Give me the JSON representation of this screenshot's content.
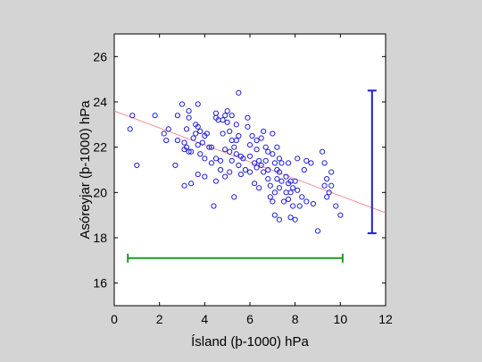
{
  "chart_data": {
    "type": "scatter",
    "xlabel": "Ísland (þ-1000) hPa",
    "ylabel": "Asóreyjar (þ-1000) hPa",
    "xlim": [
      0,
      12
    ],
    "ylim": [
      15,
      27
    ],
    "xticks": [
      0,
      2,
      4,
      6,
      8,
      10,
      12
    ],
    "yticks": [
      16,
      18,
      20,
      22,
      24,
      26
    ],
    "grid": false,
    "colors": {
      "points": "#1f1fd6",
      "trend": "#f09090",
      "x_range_bar": "#1f9a1f",
      "y_range_bar": "#1f1fd6",
      "background": "#d4d4d4",
      "plot_area": "#ffffff"
    },
    "trend_line": {
      "x": [
        0,
        12
      ],
      "y": [
        23.6,
        19.1
      ]
    },
    "x_range_bar": {
      "y": 17.1,
      "x_min": 0.6,
      "x_max": 10.1
    },
    "y_range_bar": {
      "x": 11.4,
      "y_min": 18.2,
      "y_max": 24.5
    },
    "points": [
      [
        0.7,
        22.8
      ],
      [
        0.8,
        23.4
      ],
      [
        1.0,
        21.2
      ],
      [
        1.8,
        23.4
      ],
      [
        2.2,
        22.6
      ],
      [
        2.3,
        22.3
      ],
      [
        2.4,
        22.8
      ],
      [
        2.7,
        21.2
      ],
      [
        2.8,
        23.4
      ],
      [
        2.8,
        22.3
      ],
      [
        3.0,
        23.9
      ],
      [
        3.1,
        22.2
      ],
      [
        3.1,
        21.9
      ],
      [
        3.1,
        20.3
      ],
      [
        3.2,
        22.8
      ],
      [
        3.2,
        22.0
      ],
      [
        3.3,
        23.6
      ],
      [
        3.3,
        23.3
      ],
      [
        3.3,
        21.8
      ],
      [
        3.4,
        21.8
      ],
      [
        3.4,
        20.4
      ],
      [
        3.5,
        22.4
      ],
      [
        3.6,
        23.0
      ],
      [
        3.6,
        22.6
      ],
      [
        3.7,
        23.9
      ],
      [
        3.7,
        22.9
      ],
      [
        3.7,
        22.1
      ],
      [
        3.7,
        20.8
      ],
      [
        3.8,
        22.7
      ],
      [
        3.8,
        21.7
      ],
      [
        3.9,
        22.2
      ],
      [
        4.0,
        22.5
      ],
      [
        4.0,
        21.5
      ],
      [
        4.0,
        20.7
      ],
      [
        4.1,
        22.6
      ],
      [
        4.2,
        22.0
      ],
      [
        4.3,
        22.0
      ],
      [
        4.3,
        21.3
      ],
      [
        4.4,
        19.4
      ],
      [
        4.5,
        23.5
      ],
      [
        4.5,
        23.3
      ],
      [
        4.5,
        21.5
      ],
      [
        4.5,
        20.5
      ],
      [
        4.6,
        23.2
      ],
      [
        4.7,
        21.4
      ],
      [
        4.7,
        21.0
      ],
      [
        4.8,
        23.2
      ],
      [
        4.8,
        22.6
      ],
      [
        4.9,
        23.4
      ],
      [
        4.9,
        21.9
      ],
      [
        4.9,
        20.7
      ],
      [
        5.0,
        23.6
      ],
      [
        5.0,
        23.1
      ],
      [
        5.1,
        22.7
      ],
      [
        5.1,
        21.8
      ],
      [
        5.1,
        20.9
      ],
      [
        5.2,
        23.4
      ],
      [
        5.2,
        22.3
      ],
      [
        5.2,
        21.4
      ],
      [
        5.3,
        22.0
      ],
      [
        5.3,
        19.8
      ],
      [
        5.4,
        23.0
      ],
      [
        5.4,
        22.3
      ],
      [
        5.4,
        21.7
      ],
      [
        5.5,
        24.4
      ],
      [
        5.5,
        22.5
      ],
      [
        5.5,
        21.2
      ],
      [
        5.6,
        21.6
      ],
      [
        5.6,
        20.8
      ],
      [
        5.7,
        21.5
      ],
      [
        5.8,
        21.0
      ],
      [
        5.9,
        23.3
      ],
      [
        5.9,
        22.9
      ],
      [
        6.0,
        22.1
      ],
      [
        6.0,
        21.6
      ],
      [
        6.0,
        20.9
      ],
      [
        6.1,
        22.5
      ],
      [
        6.2,
        21.3
      ],
      [
        6.2,
        20.4
      ],
      [
        6.3,
        22.3
      ],
      [
        6.3,
        21.9
      ],
      [
        6.3,
        21.1
      ],
      [
        6.4,
        21.4
      ],
      [
        6.4,
        20.2
      ],
      [
        6.5,
        22.4
      ],
      [
        6.5,
        21.2
      ],
      [
        6.6,
        22.7
      ],
      [
        6.6,
        20.9
      ],
      [
        6.7,
        22.0
      ],
      [
        6.7,
        21.4
      ],
      [
        6.8,
        21.8
      ],
      [
        6.8,
        21.0
      ],
      [
        6.8,
        20.6
      ],
      [
        6.9,
        20.3
      ],
      [
        6.9,
        19.8
      ],
      [
        7.0,
        22.6
      ],
      [
        7.0,
        21.7
      ],
      [
        7.0,
        19.6
      ],
      [
        7.1,
        21.3
      ],
      [
        7.1,
        20.0
      ],
      [
        7.1,
        19.0
      ],
      [
        7.2,
        22.0
      ],
      [
        7.2,
        21.0
      ],
      [
        7.2,
        20.6
      ],
      [
        7.3,
        21.5
      ],
      [
        7.3,
        20.9
      ],
      [
        7.3,
        20.2
      ],
      [
        7.3,
        18.8
      ],
      [
        7.4,
        21.3
      ],
      [
        7.4,
        20.5
      ],
      [
        7.5,
        19.6
      ],
      [
        7.6,
        20.7
      ],
      [
        7.6,
        20.0
      ],
      [
        7.7,
        21.3
      ],
      [
        7.7,
        20.4
      ],
      [
        7.7,
        19.7
      ],
      [
        7.8,
        20.5
      ],
      [
        7.8,
        20.0
      ],
      [
        7.8,
        18.9
      ],
      [
        7.9,
        20.2
      ],
      [
        7.9,
        19.4
      ],
      [
        8.0,
        20.5
      ],
      [
        8.0,
        18.8
      ],
      [
        8.1,
        21.5
      ],
      [
        8.1,
        20.1
      ],
      [
        8.2,
        19.4
      ],
      [
        8.3,
        19.8
      ],
      [
        8.4,
        21.0
      ],
      [
        8.5,
        21.4
      ],
      [
        8.5,
        19.6
      ],
      [
        8.7,
        21.3
      ],
      [
        8.8,
        19.5
      ],
      [
        9.0,
        18.3
      ],
      [
        9.2,
        21.8
      ],
      [
        9.3,
        21.3
      ],
      [
        9.3,
        20.3
      ],
      [
        9.4,
        20.6
      ],
      [
        9.4,
        19.8
      ],
      [
        9.5,
        20.0
      ],
      [
        9.6,
        20.9
      ],
      [
        9.6,
        20.3
      ],
      [
        9.8,
        19.4
      ],
      [
        10.0,
        19.0
      ]
    ]
  }
}
